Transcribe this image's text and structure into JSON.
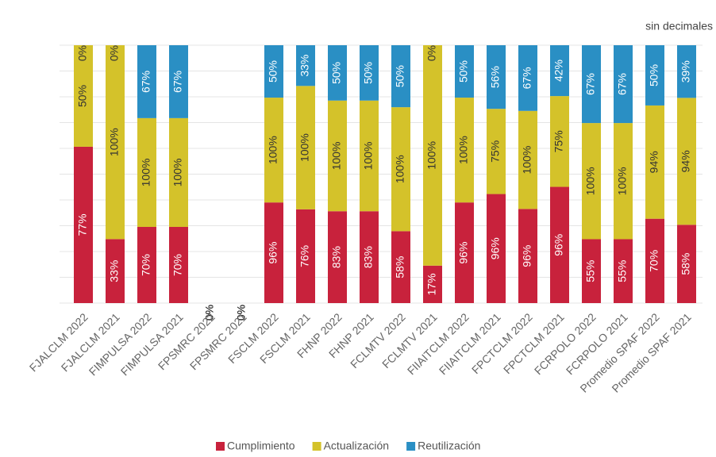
{
  "chart_data": {
    "type": "bar",
    "stacking": "percent",
    "subtitle": "sin decimales",
    "categories": [
      "FJALCLM 2022",
      "FJALCLM 2021",
      "FIMPULSA 2022",
      "FIMPULSA 2021",
      "FPSMRC 2022",
      "FPSMRC 2021",
      "FSCLM 2022",
      "FSCLM 2021",
      "FHNP 2022",
      "FHNP 2021",
      "FCLMTV 2022",
      "FCLMTV 2021",
      "FIIAITCLM 2022",
      "FIIAITCLM 2021",
      "FPCTCLM 2022",
      "FPCTCLM 2021",
      "FCRPOLO 2022",
      "FCRPOLO 2021",
      "Promedio SPAF 2022",
      "Promedio SPAF 2021"
    ],
    "series": [
      {
        "name": "Cumplimiento",
        "color": "#c8223c",
        "values": [
          77,
          33,
          70,
          70,
          0,
          0,
          96,
          76,
          83,
          83,
          58,
          17,
          96,
          96,
          96,
          96,
          55,
          55,
          70,
          58
        ],
        "value_labels": [
          "77%",
          "33%",
          "70%",
          "70%",
          "0%",
          "0%",
          "96%",
          "76%",
          "83%",
          "83%",
          "58%",
          "17%",
          "96%",
          "96%",
          "96%",
          "96%",
          "55%",
          "55%",
          "70%",
          "58%"
        ]
      },
      {
        "name": "Actualización",
        "color": "#d4c22a",
        "values": [
          50,
          100,
          100,
          100,
          0,
          0,
          100,
          100,
          100,
          100,
          100,
          100,
          100,
          75,
          100,
          75,
          100,
          100,
          94,
          94
        ],
        "value_labels": [
          "50%",
          "100%",
          "100%",
          "100%",
          "0%",
          "0%",
          "100%",
          "100%",
          "100%",
          "100%",
          "100%",
          "100%",
          "100%",
          "75%",
          "100%",
          "75%",
          "100%",
          "100%",
          "94%",
          "94%"
        ]
      },
      {
        "name": "Reutilización",
        "color": "#2a8fc4",
        "values": [
          0,
          0,
          67,
          67,
          0,
          0,
          50,
          33,
          50,
          50,
          50,
          0,
          50,
          56,
          67,
          42,
          67,
          67,
          50,
          39
        ],
        "value_labels": [
          "0%",
          "0%",
          "67%",
          "67%",
          "0%",
          "0%",
          "50%",
          "33%",
          "50%",
          "50%",
          "50%",
          "0%",
          "50%",
          "56%",
          "67%",
          "42%",
          "67%",
          "67%",
          "50%",
          "39%"
        ]
      }
    ],
    "grid": true,
    "legend": "bottom"
  }
}
